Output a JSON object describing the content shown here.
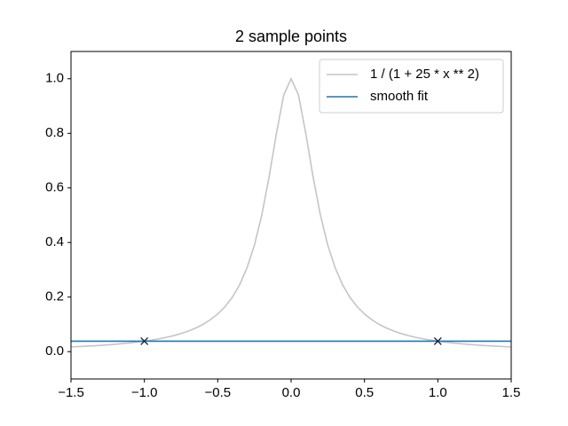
{
  "chart_data": {
    "type": "line",
    "title": "2 sample points",
    "series": [
      {
        "name": "1 / (1 + 25 * x ** 2)",
        "color": "#c8c4c4",
        "x": [
          -1.5,
          -1.45,
          -1.4,
          -1.35,
          -1.3,
          -1.25,
          -1.2,
          -1.15,
          -1.1,
          -1.05,
          -1.0,
          -0.95,
          -0.9,
          -0.85,
          -0.8,
          -0.75,
          -0.7,
          -0.65,
          -0.6,
          -0.55,
          -0.5,
          -0.45,
          -0.4,
          -0.35,
          -0.3,
          -0.25,
          -0.2,
          -0.15,
          -0.1,
          -0.05,
          0,
          0.05,
          0.1,
          0.15,
          0.2,
          0.25,
          0.3,
          0.35,
          0.4,
          0.45,
          0.5,
          0.55,
          0.6,
          0.65,
          0.7,
          0.75,
          0.8,
          0.85,
          0.9,
          0.95,
          1.0,
          1.05,
          1.1,
          1.15,
          1.2,
          1.25,
          1.3,
          1.35,
          1.4,
          1.45,
          1.5
        ],
        "values": [
          0.0175,
          0.0187,
          0.02,
          0.0215,
          0.0231,
          0.025,
          0.027,
          0.0294,
          0.032,
          0.035,
          0.0385,
          0.0424,
          0.0471,
          0.0525,
          0.0588,
          0.0664,
          0.0755,
          0.0865,
          0.1,
          0.117,
          0.138,
          0.165,
          0.2,
          0.246,
          0.308,
          0.39,
          0.5,
          0.64,
          0.8,
          0.941,
          1,
          0.941,
          0.8,
          0.64,
          0.5,
          0.39,
          0.308,
          0.246,
          0.2,
          0.165,
          0.138,
          0.117,
          0.1,
          0.0865,
          0.0755,
          0.0664,
          0.0588,
          0.0525,
          0.0471,
          0.0424,
          0.0385,
          0.035,
          0.032,
          0.0294,
          0.027,
          0.025,
          0.0231,
          0.0215,
          0.02,
          0.0187,
          0.0175
        ]
      },
      {
        "name": "smooth fit",
        "color": "#1f77b4",
        "x": [
          -1.5,
          1.5
        ],
        "values": [
          0.0385,
          0.0385
        ]
      },
      {
        "type": "scatter",
        "marker": "x",
        "color": "#1a1a2e",
        "x": [
          -1.0,
          1.0
        ],
        "values": [
          0.0385,
          0.0385
        ]
      }
    ],
    "xlim": [
      -1.5,
      1.5
    ],
    "xticks": [
      {
        "value": -1.5,
        "label": "−1.5"
      },
      {
        "value": -1.0,
        "label": "−1.0"
      },
      {
        "value": -0.5,
        "label": "−0.5"
      },
      {
        "value": 0.0,
        "label": "0.0"
      },
      0.5,
      {
        "value": 1.0,
        "label": "1.0"
      },
      1.5
    ],
    "ylim": [
      -0.1,
      1.1
    ],
    "yticks": [
      {
        "value": 0.0,
        "label": "0.0"
      },
      0.2,
      0.4,
      0.6,
      0.8,
      {
        "value": 1.0,
        "label": "1.0"
      }
    ],
    "grid": false,
    "legend": "upper right"
  }
}
